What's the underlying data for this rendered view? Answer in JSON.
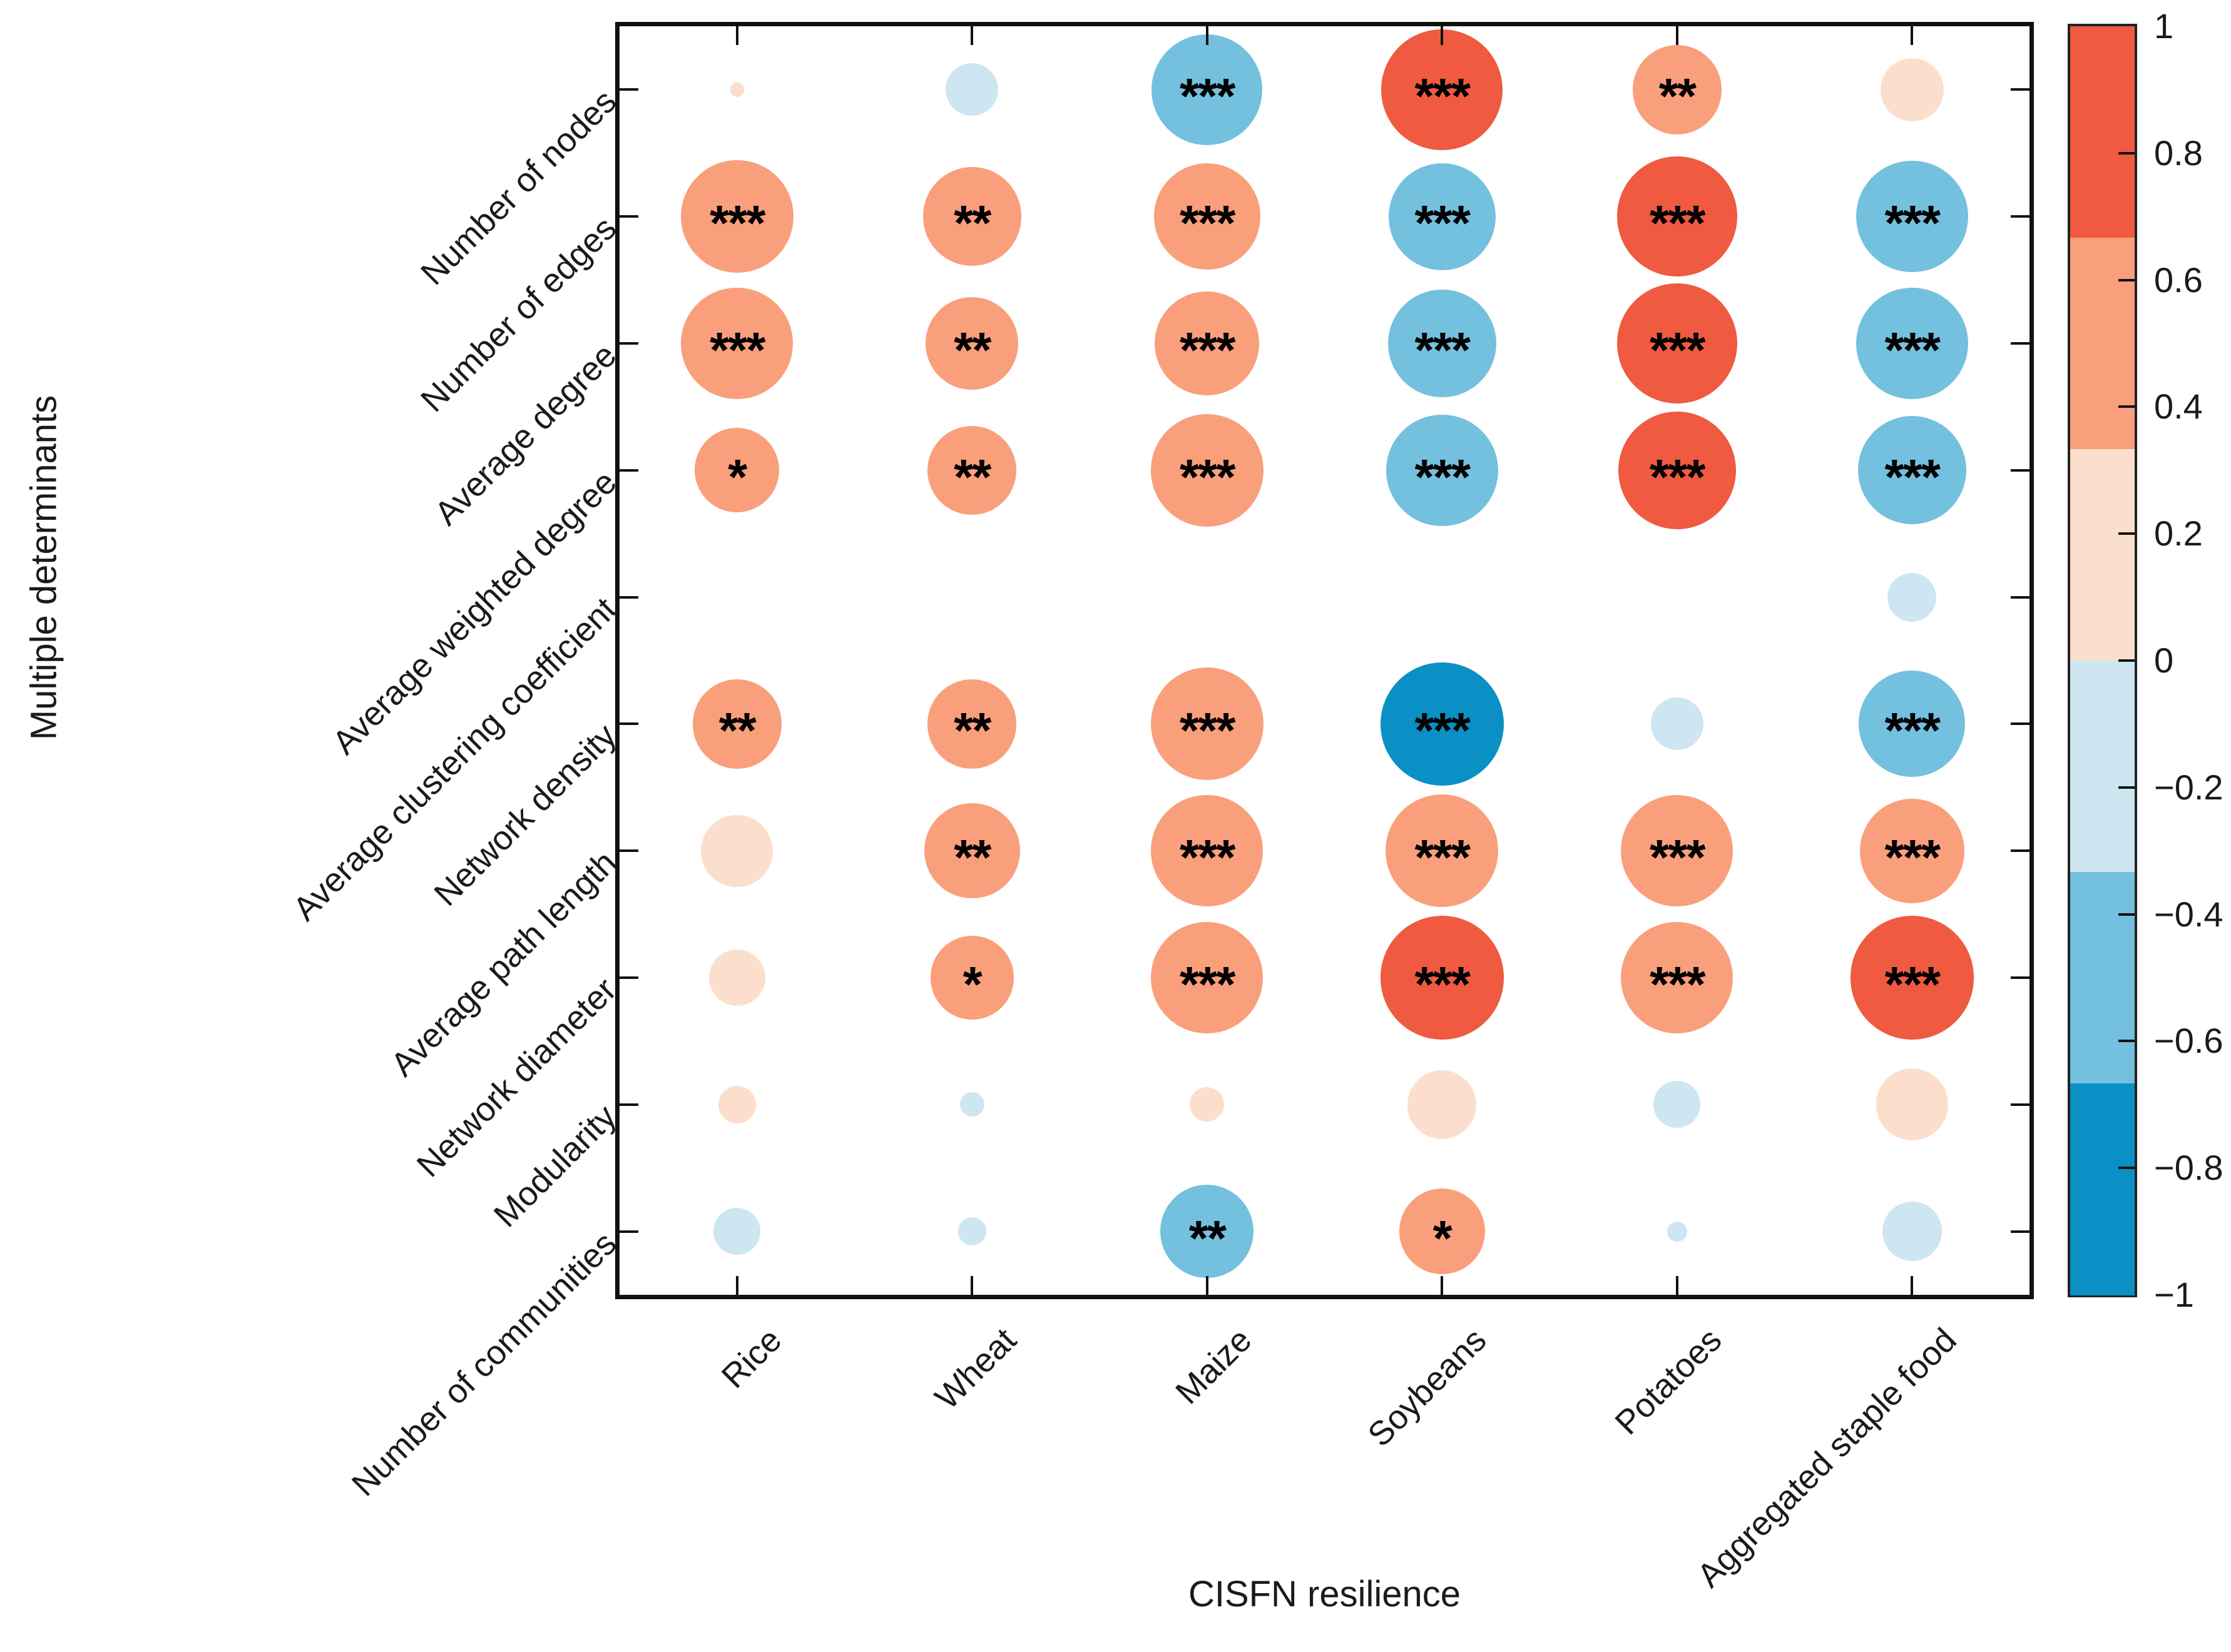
{
  "chart_data": {
    "type": "bubble",
    "subtype": "correlation-matrix",
    "title": "",
    "xlabel": "CISFN resilience",
    "ylabel": "Multiple determinants",
    "x_categories": [
      "Rice",
      "Wheat",
      "Maize",
      "Soybeans",
      "Potatoes",
      "Aggregated staple food"
    ],
    "y_categories": [
      "Number of nodes",
      "Number of edges",
      "Average degree",
      "Average weighted degree",
      "Average clustering coefficient",
      "Network density",
      "Average path length",
      "Network diameter",
      "Modularity",
      "Number of communities"
    ],
    "rows": [
      {
        "determinant": "Number of nodes",
        "values": [
          0.01,
          -0.14,
          -0.62,
          0.74,
          0.4,
          0.2
        ],
        "significance": [
          "",
          "",
          "***",
          "***",
          "**",
          ""
        ]
      },
      {
        "determinant": "Number of edges",
        "values": [
          0.64,
          0.49,
          0.57,
          -0.58,
          0.73,
          -0.63
        ],
        "significance": [
          "***",
          "**",
          "***",
          "***",
          "***",
          "***"
        ]
      },
      {
        "determinant": "Average degree",
        "values": [
          0.63,
          0.43,
          0.55,
          -0.59,
          0.73,
          -0.63
        ],
        "significance": [
          "***",
          "**",
          "***",
          "***",
          "***",
          "***"
        ]
      },
      {
        "determinant": "Average weighted degree",
        "values": [
          0.36,
          0.4,
          0.64,
          -0.63,
          0.7,
          -0.59
        ],
        "significance": [
          "*",
          "**",
          "***",
          "***",
          "***",
          "***"
        ]
      },
      {
        "determinant": "Average clustering coefficient",
        "values": [
          null,
          null,
          null,
          null,
          null,
          -0.12
        ],
        "significance": [
          "",
          "",
          "",
          "",
          "",
          ""
        ]
      },
      {
        "determinant": "Network density",
        "values": [
          0.4,
          0.4,
          0.64,
          -0.77,
          -0.14,
          -0.57
        ],
        "significance": [
          "**",
          "**",
          "***",
          "***",
          "",
          "***"
        ]
      },
      {
        "determinant": "Average path length",
        "values": [
          0.26,
          0.46,
          0.63,
          0.64,
          0.63,
          0.55
        ],
        "significance": [
          "",
          "**",
          "***",
          "***",
          "***",
          "***"
        ]
      },
      {
        "determinant": "Network diameter",
        "values": [
          0.16,
          0.35,
          0.63,
          0.77,
          0.63,
          0.77
        ],
        "significance": [
          "",
          "*",
          "***",
          "***",
          "***",
          "***"
        ]
      },
      {
        "determinant": "Modularity",
        "values": [
          0.07,
          -0.03,
          0.06,
          0.24,
          -0.11,
          0.26
        ],
        "significance": [
          "",
          "",
          "",
          "",
          "",
          ""
        ]
      },
      {
        "determinant": "Number of communities",
        "values": [
          -0.11,
          -0.04,
          -0.44,
          0.37,
          -0.02,
          -0.18
        ],
        "significance": [
          "",
          "",
          "**",
          "*",
          "",
          ""
        ]
      }
    ],
    "size_hint": "bubble diameter proportional to sqrt(|value|)",
    "grid": false,
    "legend_position": "right-colorbar",
    "colorbar": {
      "min": -1,
      "max": 1,
      "tick_values": [
        1,
        0.8,
        0.6,
        0.4,
        0.2,
        0,
        -0.2,
        -0.4,
        -0.6,
        -0.8,
        -1
      ],
      "tick_labels": [
        "1",
        "0.8",
        "0.6",
        "0.4",
        "0.2",
        "0",
        "−0.2",
        "−0.4",
        "−0.6",
        "−0.8",
        "−1"
      ],
      "bands": [
        {
          "from": 0.667,
          "to": 1,
          "color": "#ef5a40"
        },
        {
          "from": 0.333,
          "to": 0.667,
          "color": "#fa9f7b"
        },
        {
          "from": 0,
          "to": 0.333,
          "color": "#fbdfcc"
        },
        {
          "from": -0.333,
          "to": 0,
          "color": "#cde6f1"
        },
        {
          "from": -0.667,
          "to": -0.333,
          "color": "#74c0df"
        },
        {
          "from": -1,
          "to": -0.667,
          "color": "#0a90c4"
        }
      ]
    }
  }
}
